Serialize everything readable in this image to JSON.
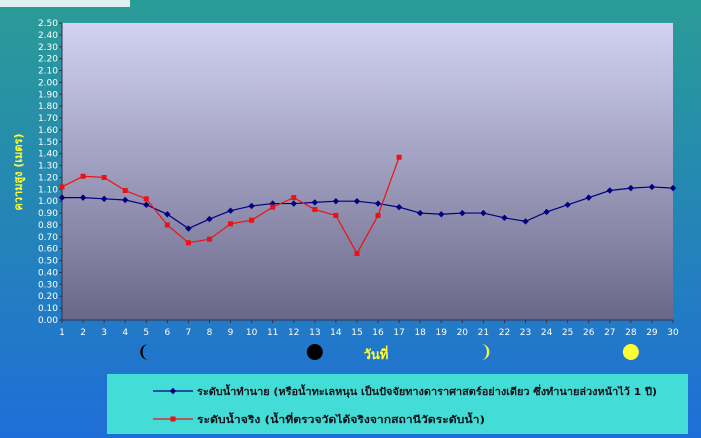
{
  "chart_data": {
    "type": "line",
    "title": "",
    "xlabel": "วันที่",
    "ylabel": "ความสูง (เมตร)",
    "x": [
      1,
      2,
      3,
      4,
      5,
      6,
      7,
      8,
      9,
      10,
      11,
      12,
      13,
      14,
      15,
      16,
      17,
      18,
      19,
      20,
      21,
      22,
      23,
      24,
      25,
      26,
      27,
      28,
      29,
      30
    ],
    "ylim": [
      0,
      2.5
    ],
    "ytick_step": 0.1,
    "grid": false,
    "legend_position": "bottom",
    "series": [
      {
        "name": "ระดับน้ำทำนาย  (หรือน้ำทะเลหนุน  เป็นปัจจัยทางดาราศาสตร์อย่างเดียว  ซึ่งทำนายล่วงหน้าไว้ 1 ปี)",
        "color": "#000080",
        "marker": "diamond",
        "x": [
          1,
          2,
          3,
          4,
          5,
          6,
          7,
          8,
          9,
          10,
          11,
          12,
          13,
          14,
          15,
          16,
          17,
          18,
          19,
          20,
          21,
          22,
          23,
          24,
          25,
          26,
          27,
          28,
          29,
          30
        ],
        "values": [
          1.03,
          1.03,
          1.02,
          1.01,
          0.97,
          0.89,
          0.77,
          0.85,
          0.92,
          0.96,
          0.98,
          0.98,
          0.99,
          1.0,
          1.0,
          0.98,
          0.95,
          0.9,
          0.89,
          0.9,
          0.9,
          0.86,
          0.83,
          0.91,
          0.97,
          1.03,
          1.09,
          1.11,
          1.12,
          1.11
        ]
      },
      {
        "name": "ระดับน้ำจริง  (น้ำที่ตรวจวัดได้จริงจากสถานีวัดระดับน้ำ)",
        "color": "#ee1111",
        "marker": "square",
        "x": [
          1,
          2,
          3,
          4,
          5,
          6,
          7,
          8,
          9,
          10,
          11,
          12,
          13,
          14,
          15,
          16,
          17
        ],
        "values": [
          1.12,
          1.21,
          1.2,
          1.09,
          1.02,
          0.8,
          0.65,
          0.68,
          0.81,
          0.84,
          0.95,
          1.03,
          0.93,
          0.88,
          0.56,
          0.88,
          1.37
        ]
      }
    ],
    "moon_phases": [
      {
        "day": 5,
        "phase": "waning-crescent-icon",
        "color": "#000000"
      },
      {
        "day": 13,
        "phase": "new-moon-icon",
        "color": "#000000"
      },
      {
        "day": 21,
        "phase": "waxing-crescent-icon",
        "color": "#ffff33"
      },
      {
        "day": 28,
        "phase": "full-moon-icon",
        "color": "#ffff33"
      }
    ],
    "colors": {
      "plot_top": "#d2d2f2",
      "plot_bottom": "#6a6888",
      "background_top": "#2a9c96",
      "background_bottom": "#1f6ed8",
      "legend_background": "#44dcd6",
      "axis_title": "#ffff33",
      "tick_labels": "#ffffff"
    }
  }
}
